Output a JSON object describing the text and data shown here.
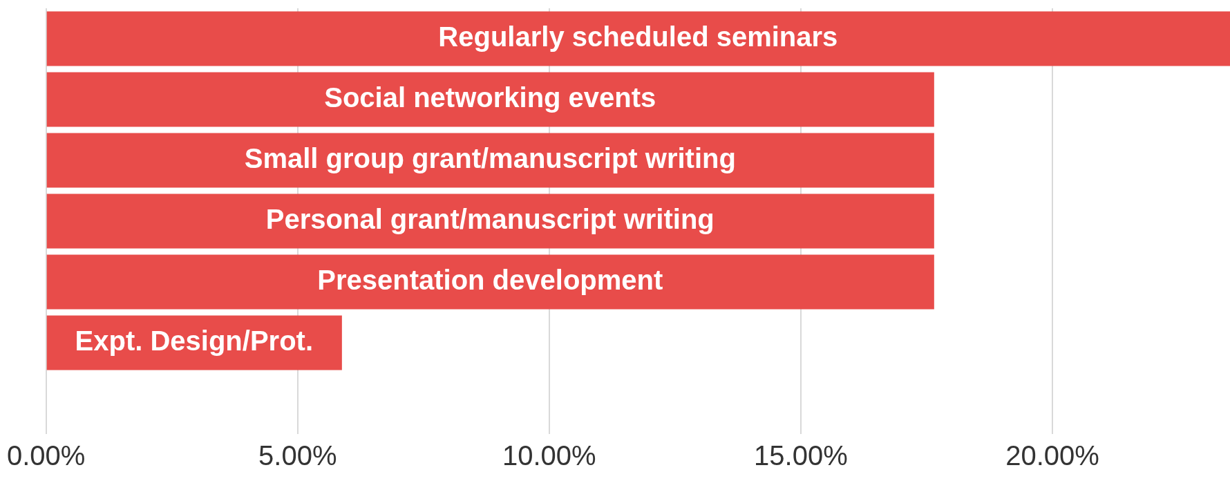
{
  "chart_data": {
    "type": "bar",
    "orientation": "horizontal",
    "categories": [
      "Regularly scheduled seminars",
      "Social networking events",
      "Small group grant/manuscript writing",
      "Personal grant/manuscript writing",
      "Presentation development",
      "Expt. Design/Prot.",
      null
    ],
    "values": [
      23.53,
      17.65,
      17.65,
      17.65,
      17.65,
      5.88,
      0
    ],
    "color": "#e84c4a",
    "xlim": [
      0,
      23.53
    ],
    "xticks": [
      {
        "value": 0,
        "label": "0.00%"
      },
      {
        "value": 5,
        "label": "5.00%"
      },
      {
        "value": 10,
        "label": "10.00%"
      },
      {
        "value": 15,
        "label": "15.00%"
      },
      {
        "value": 20,
        "label": "20.00%"
      }
    ],
    "grid": "x",
    "tick_labels": "x",
    "legend": false
  }
}
